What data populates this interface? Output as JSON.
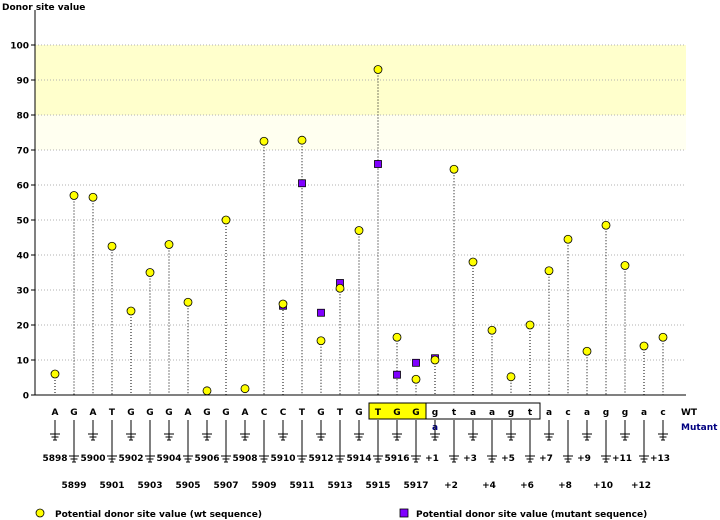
{
  "chart_data": {
    "type": "scatter",
    "title": "",
    "ylabel": "Donor site value",
    "xlabel": "",
    "ylim": [
      0,
      100
    ],
    "yticks": [
      0,
      10,
      20,
      30,
      40,
      50,
      60,
      70,
      80,
      90,
      100
    ],
    "highlight_band": [
      80,
      100
    ],
    "faint_band": [
      70,
      80
    ],
    "wt_row_label": "WT",
    "mutant_row_label": "Mutant",
    "bases": [
      "A",
      "G",
      "A",
      "T",
      "G",
      "G",
      "G",
      "A",
      "G",
      "G",
      "A",
      "C",
      "C",
      "T",
      "G",
      "T",
      "G",
      "T",
      "G",
      "G",
      "g",
      "t",
      "a",
      "a",
      "g",
      "t",
      "a",
      "c",
      "a",
      "g",
      "g",
      "a",
      "c"
    ],
    "positions": [
      "5898",
      "5899",
      "5900",
      "5901",
      "5902",
      "5903",
      "5904",
      "5905",
      "5906",
      "5907",
      "5908",
      "5909",
      "5910",
      "5911",
      "5912",
      "5913",
      "5914",
      "5915",
      "5916",
      "5917",
      "+1",
      "+2",
      "+3",
      "+4",
      "+5",
      "+6",
      "+7",
      "+8",
      "+9",
      "+10",
      "+11",
      "+12",
      "+13"
    ],
    "mutant_base": {
      "index": 20,
      "base": "a"
    },
    "highlighted_exon": [
      17,
      19
    ],
    "boxed_intron": [
      20,
      25
    ],
    "wt_values": [
      6,
      57,
      56.5,
      42.5,
      24,
      35,
      43,
      26.5,
      1.2,
      50,
      1.8,
      72.5,
      26,
      72.8,
      15.5,
      30.5,
      47,
      93,
      16.5,
      4.5,
      10,
      64.5,
      38,
      18.5,
      5.2,
      20,
      35.5,
      44.5,
      12.5,
      48.5,
      37,
      14,
      16.5
    ],
    "mutant_points": [
      {
        "index": 12,
        "value": 25.5
      },
      {
        "index": 13,
        "value": 60.5
      },
      {
        "index": 14,
        "value": 23.5
      },
      {
        "index": 15,
        "value": 32
      },
      {
        "index": 17,
        "value": 66
      },
      {
        "index": 18,
        "value": 5.8
      },
      {
        "index": 19,
        "value": 9.2
      },
      {
        "index": 20,
        "value": 10.5
      }
    ],
    "legend": [
      {
        "label": "Potential donor site value (wt sequence)",
        "marker": "circle",
        "color": "#ffff00"
      },
      {
        "label": "Potential donor site value (mutant sequence)",
        "marker": "square",
        "color": "#8000ff"
      }
    ],
    "colors": {
      "wt": "#ffff00",
      "mutant": "#8000ff",
      "band": "#ffffcc",
      "exon_box": "#ffff00",
      "mutant_text": "#000080"
    }
  }
}
